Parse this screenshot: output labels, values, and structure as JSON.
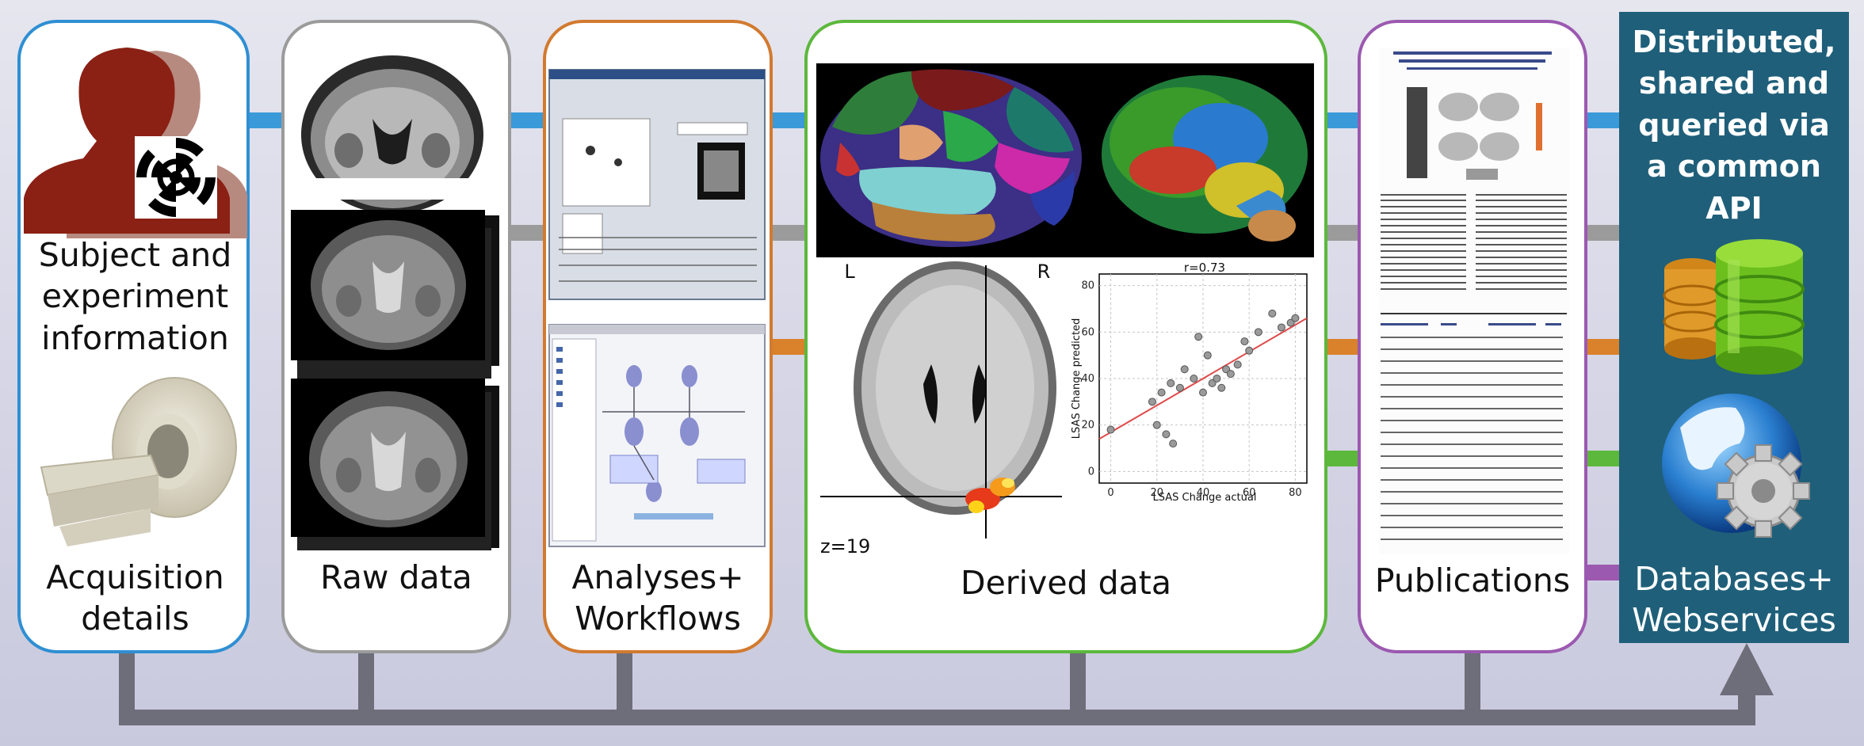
{
  "panels": {
    "subject": {
      "title": "Subject and experiment information",
      "title_lines": [
        "Subject and",
        "experiment",
        "information"
      ],
      "subtitle_lines": [
        "Acquisition",
        "details"
      ],
      "color": "#2f8fd3"
    },
    "raw": {
      "title": "Raw data",
      "color": "#9b9b9b"
    },
    "analyses": {
      "title_lines": [
        "Analyses+",
        "Workflows"
      ],
      "color": "#d27a30"
    },
    "derived": {
      "title": "Derived data",
      "color": "#5cb83c",
      "slice_label": "z=19",
      "left_marker": "L",
      "right_marker": "R"
    },
    "publications": {
      "title": "Publications",
      "color": "#9b59b0"
    },
    "databases": {
      "title_lines": [
        "Distributed,",
        "shared and",
        "queried via",
        "a common",
        "API"
      ],
      "footer_lines": [
        "Databases+",
        "Webservices"
      ],
      "color": "#1f5f7a"
    }
  },
  "scatter": {
    "title": "r=0.73",
    "xlabel": "LSAS Change actual",
    "ylabel": "LSAS Change predicted",
    "ticks_x": [
      "0",
      "20",
      "40",
      "60",
      "80"
    ],
    "ticks_y": [
      "0",
      "20",
      "40",
      "60",
      "80"
    ]
  },
  "connector_colors": [
    "#3a9ad9",
    "#9b9b9b",
    "#d9822b",
    "#5cb83c",
    "#9b59b0"
  ],
  "flow_color": "#6e6e7a",
  "icons": [
    "subject-silhouette-icon",
    "mri-scanner-icon",
    "database-icon",
    "globe-gear-icon"
  ]
}
